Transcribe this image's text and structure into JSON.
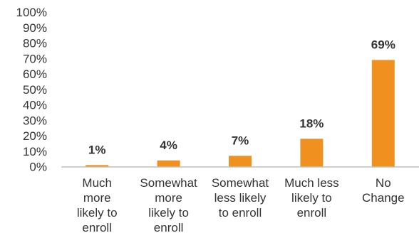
{
  "chart_data": {
    "type": "bar",
    "title": "",
    "xlabel": "",
    "ylabel": "",
    "ylim": [
      0,
      100
    ],
    "y_ticks": [
      0,
      10,
      20,
      30,
      40,
      50,
      60,
      70,
      80,
      90,
      100
    ],
    "tick_suffix": "%",
    "grid": false,
    "bar_color": "#f0901e",
    "axis_color": "#bfbfbf",
    "categories": [
      [
        "Much",
        "more",
        "likely to",
        "enroll"
      ],
      [
        "Somewhat",
        "more",
        "likely to",
        "enroll"
      ],
      [
        "Somewhat",
        "less likely",
        "to enroll"
      ],
      [
        "Much less",
        "likely to",
        "enroll"
      ],
      [
        "No",
        "Change"
      ]
    ],
    "values": [
      1,
      4,
      7,
      18,
      69
    ],
    "data_labels": [
      "1%",
      "4%",
      "7%",
      "18%",
      "69%"
    ]
  }
}
